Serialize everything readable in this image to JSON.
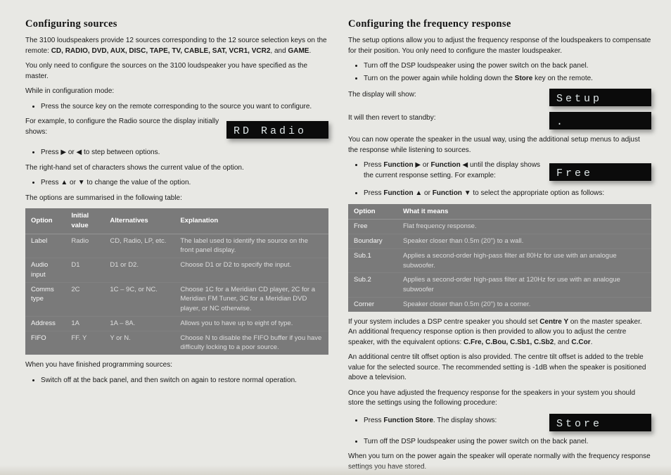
{
  "left": {
    "h2": "Configuring sources",
    "p1a": "The 3100 loudspeakers provide 12 sources corresponding to the 12 source selection keys on the remote: ",
    "p1_bold": "CD, RADIO, DVD, AUX, DISC, TAPE, TV, CABLE, SAT, VCR1, VCR2",
    "p1b": ", and ",
    "p1_bold2": "GAME",
    "p1c": ".",
    "p2": "You only need to configure the sources on the 3100 loudspeaker you have specified as the master.",
    "p3": "While in configuration mode:",
    "li1": "Press the source key on the remote corresponding to the source you want to configure.",
    "row1_text": "For example, to configure the Radio source the display initially shows:",
    "lcd1": "RD Radio",
    "li2a": "Press ",
    "li2b": " or ",
    "li2c": " to step between options.",
    "p4": "The right-hand set of characters shows the current value of the option.",
    "li3a": "Press ",
    "li3b": " or ",
    "li3c": " to change the value of the option.",
    "p5": "The options are summarised in the following table:",
    "table": {
      "headers": [
        "Option",
        "Initial value",
        "Alternatives",
        "Explanation"
      ],
      "rows": [
        [
          "Label",
          "Radio",
          "CD, Radio, LP, etc.",
          "The label used to identify the source on the front panel display."
        ],
        [
          "Audio input",
          "D1",
          "D1 or D2.",
          "Choose D1 or D2 to specify the input."
        ],
        [
          "Comms type",
          "2C",
          "1C – 9C, or NC.",
          "Choose 1C for a Meridian CD player, 2C for a Meridian FM Tuner, 3C for a Meridian DVD player, or NC otherwise."
        ],
        [
          "Address",
          "1A",
          "1A – 8A.",
          "Allows you to have up to eight of type."
        ],
        [
          "FIFO",
          "FF. Y",
          "Y or N.",
          "Choose N to disable the FIFO buffer if you have difficulty locking to a poor source."
        ]
      ]
    },
    "p6": "When you have finished programming sources:",
    "li4": "Switch off at the back panel, and then switch on again to restore normal operation."
  },
  "right": {
    "h2": "Configuring the frequency response",
    "p1": "The setup options allow you to adjust the frequency response of the loudspeakers to compensate for their position. You only need to configure the master loudspeaker.",
    "li1": "Turn off the DSP loudspeaker using the power switch on the back panel.",
    "li2a": "Turn on the power again while holding down the ",
    "li2b": "Store",
    "li2c": " key on the remote.",
    "row1_text": "The display will show:",
    "lcd1": "Setup",
    "row2_text": "It will then revert to standby:",
    "lcd2": ".",
    "p2": "You can now operate the speaker in the usual way, using the additional setup menus to adjust the response while listening to sources.",
    "row3_li_a": "Press ",
    "row3_li_b": "Function",
    "row3_li_c": " or ",
    "row3_li_d": "Function",
    "row3_li_e": " until the display shows the current response setting. For example:",
    "lcd3": "Free",
    "li3a": "Press ",
    "li3b": "Function",
    "li3c": " or ",
    "li3d": "Function",
    "li3e": " to select the appropriate option as follows:",
    "table": {
      "headers": [
        "Option",
        "What it means"
      ],
      "rows": [
        [
          "Free",
          "Flat frequency response."
        ],
        [
          "Boundary",
          "Speaker closer than 0.5m (20\") to a wall."
        ],
        [
          "Sub.1",
          "Applies a second-order high-pass filter at 80Hz for use with an analogue subwoofer."
        ],
        [
          "Sub.2",
          "Applies a second-order high-pass filter at 120Hz for use with an analogue subwoofer"
        ],
        [
          "Corner",
          "Speaker closer than 0.5m (20\") to a corner."
        ]
      ]
    },
    "p3a": "If your system includes a DSP centre speaker you should set ",
    "p3b": "Centre Y",
    "p3c": " on the master speaker. An additional frequency response option is then provided to allow you to adjust the centre speaker, with the equivalent options: ",
    "p3d": "C.Fre, C.Bou, C.Sb1, C.Sb2",
    "p3e": ", and ",
    "p3f": "C.Cor",
    "p3g": ".",
    "p4": "An additional centre tilt offset option is also provided. The centre tilt offset is added to the treble value for the selected source. The recommended setting is -1dB when the speaker is positioned above a television.",
    "p5": "Once you have adjusted the frequency response for the speakers in your system you should store the settings using the following procedure:",
    "row4_li_a": "Press ",
    "row4_li_b": "Function Store",
    "row4_li_c": ". The display shows:",
    "lcd4": "Store",
    "li5": "Turn off the DSP loudspeaker using the power switch on the back panel.",
    "p6": "When you turn on the power again the speaker will operate normally with the frequency response settings you have stored."
  },
  "symbols": {
    "right": "▶",
    "left": "◀",
    "up": "▲",
    "down": "▼"
  }
}
